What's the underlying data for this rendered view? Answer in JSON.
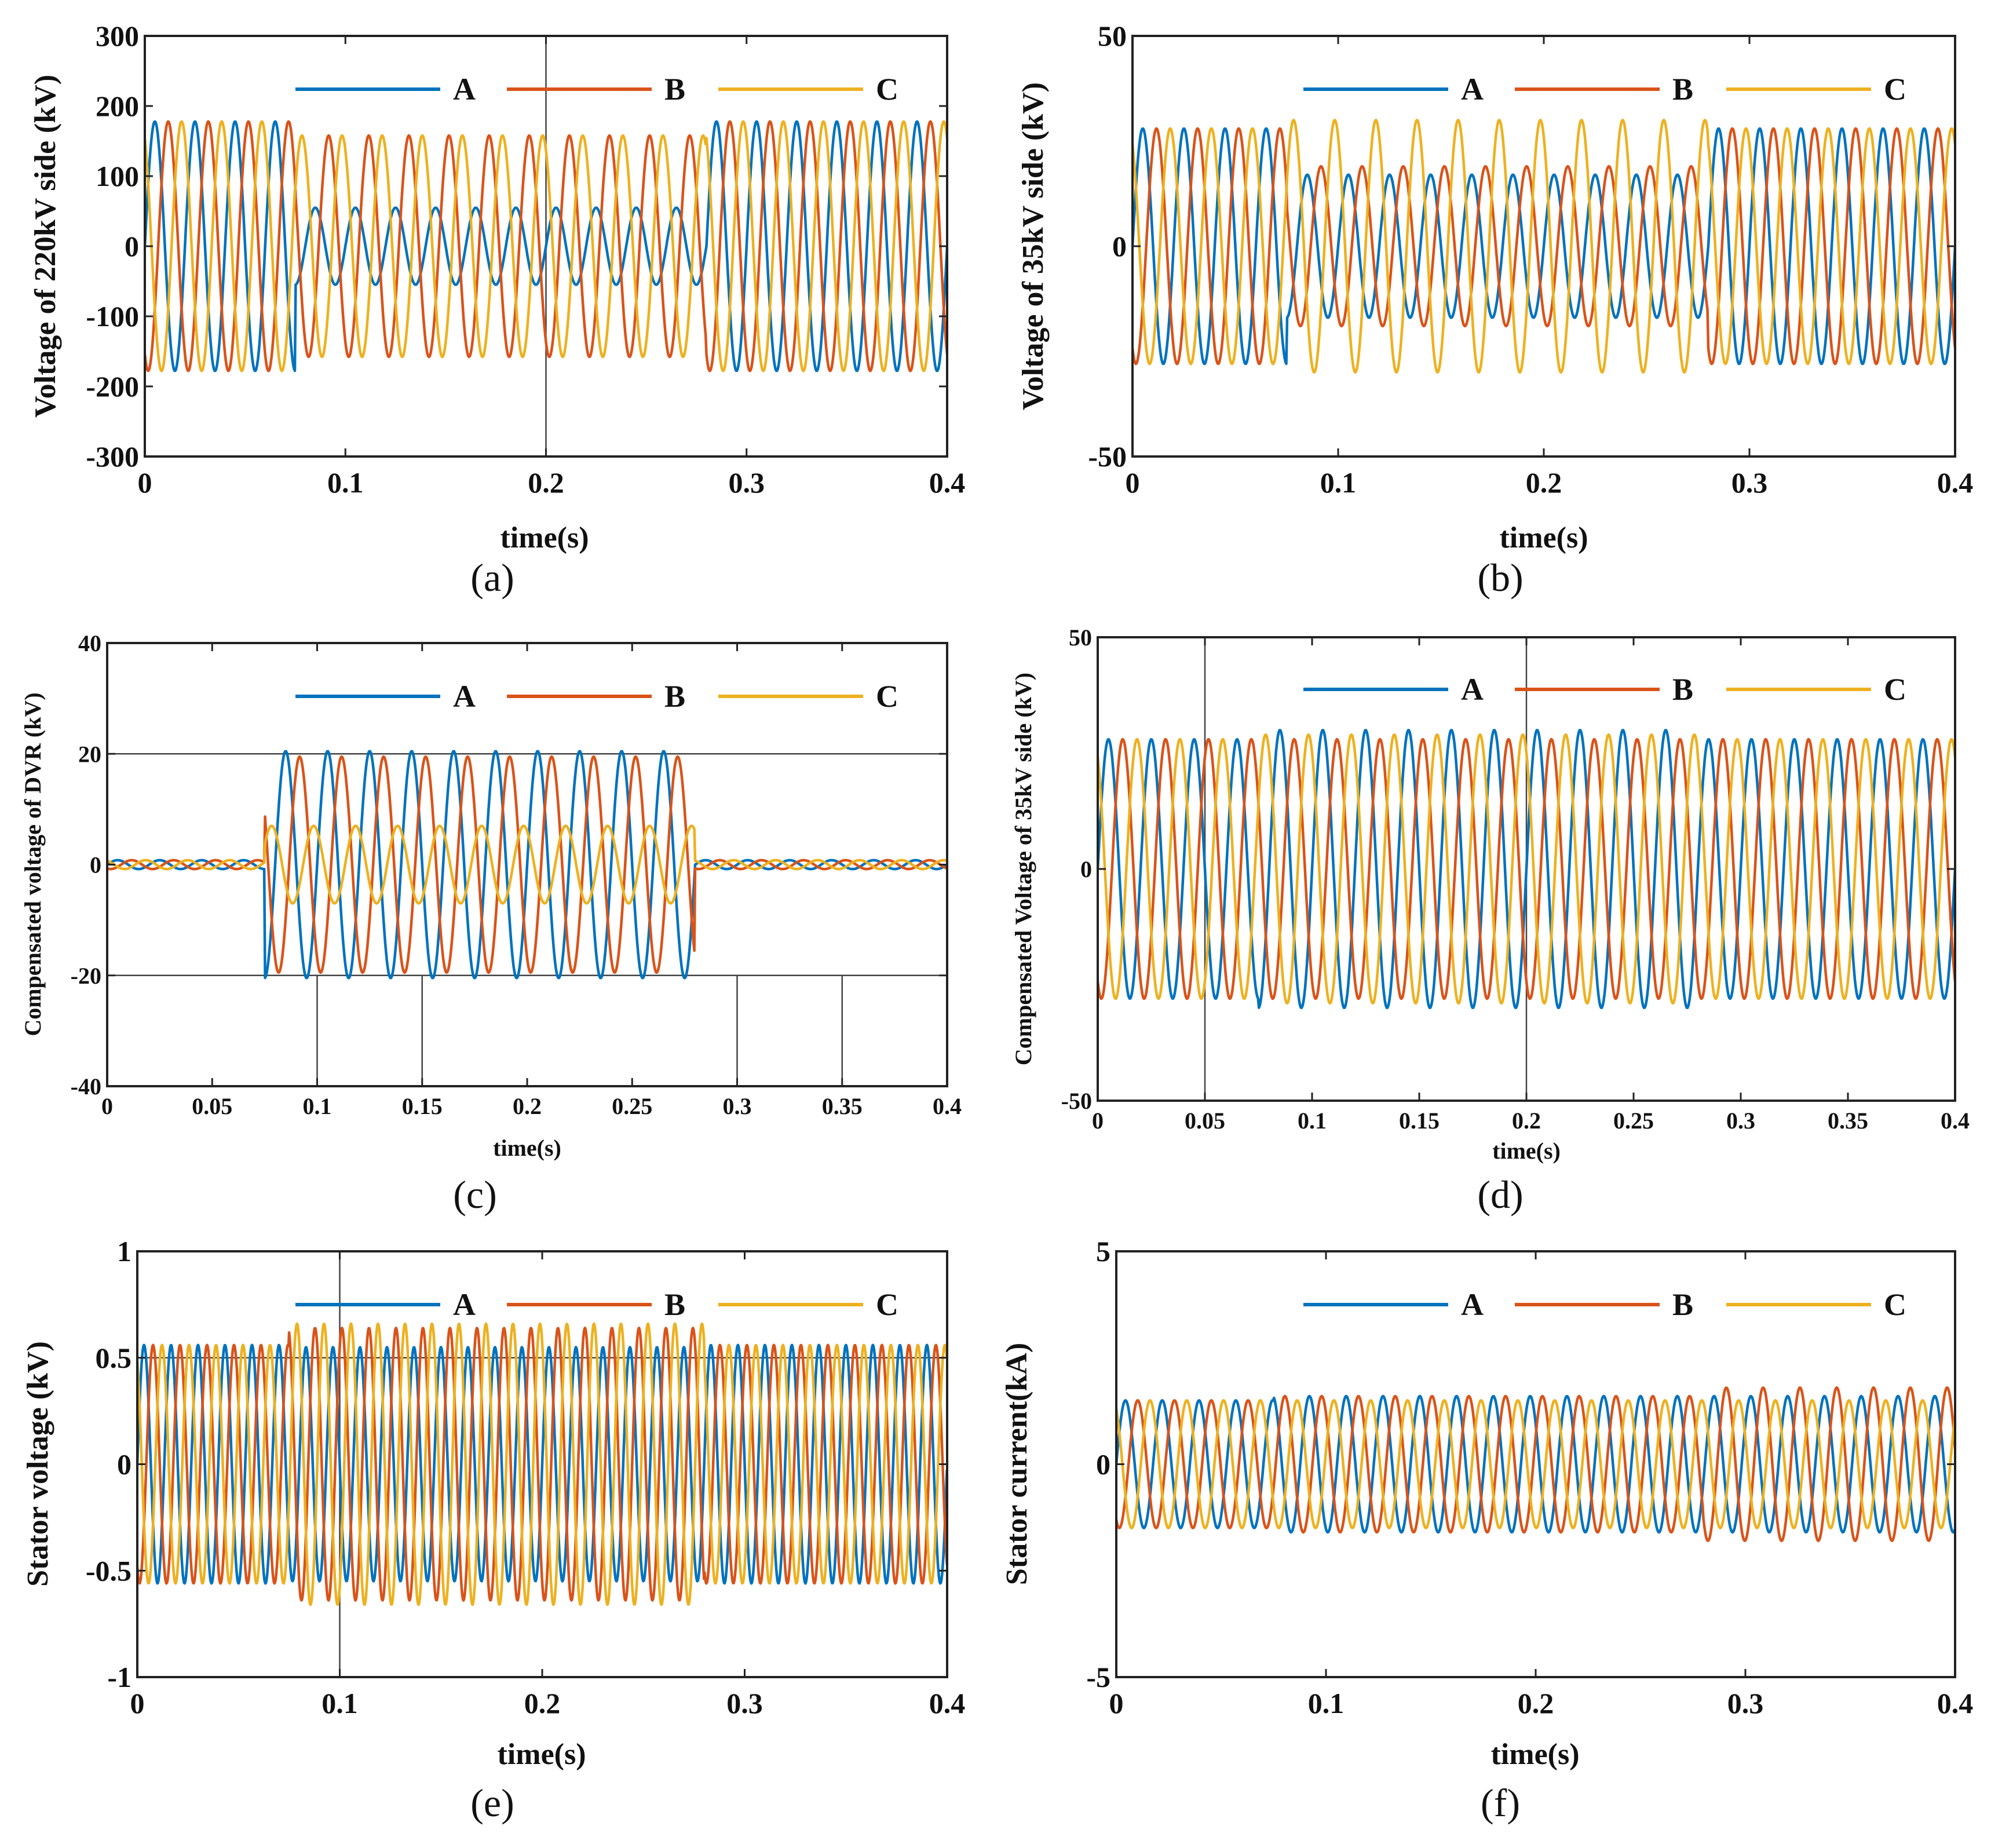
{
  "colors": {
    "A": "#0072BD",
    "B": "#D95319",
    "C": "#EDB120"
  },
  "chart_data": [
    {
      "id": "a",
      "type": "line",
      "caption": "(a)",
      "xlabel": "time(s)",
      "ylabel": "Voltage of 220kV side (kV)",
      "xlim": [
        0,
        0.4
      ],
      "ylim": [
        -300,
        300
      ],
      "xticks": [
        0,
        0.1,
        0.2,
        0.3,
        0.4
      ],
      "xtick_labels": [
        "0",
        "0.1",
        "0.2",
        "0.3",
        "0.4"
      ],
      "yticks": [
        -300,
        -200,
        -100,
        0,
        100,
        200,
        300
      ],
      "ytick_labels": [
        "-300",
        "-200",
        "-100",
        "0",
        "100",
        "200",
        "300"
      ],
      "legend": [
        "A",
        "B",
        "C"
      ],
      "legend_position": "top",
      "frequency_hz": 50,
      "sampling_step_s": 0.0004,
      "guide_lines_x": [
        0.2
      ],
      "guide_lines_y": [],
      "segments": [
        {
          "from": 0,
          "to": 0.075,
          "amplitude": {
            "A": 178,
            "B": 178,
            "C": 178
          }
        },
        {
          "from": 0.075,
          "to": 0.28,
          "amplitude": {
            "A": 55,
            "B": 158,
            "C": 158
          }
        },
        {
          "from": 0.28,
          "to": 0.4,
          "amplitude": {
            "A": 178,
            "B": 178,
            "C": 178
          }
        }
      ]
    },
    {
      "id": "b",
      "type": "line",
      "caption": "(b)",
      "xlabel": "time(s)",
      "ylabel": "Voltage of 35kV side (kV)",
      "xlim": [
        0,
        0.4
      ],
      "ylim": [
        -50,
        50
      ],
      "xticks": [
        0,
        0.1,
        0.2,
        0.3,
        0.4
      ],
      "xtick_labels": [
        "0",
        "0.1",
        "0.2",
        "0.3",
        "0.4"
      ],
      "yticks": [
        -50,
        0,
        50
      ],
      "ytick_labels": [
        "-50",
        "0",
        "50"
      ],
      "legend": [
        "A",
        "B",
        "C"
      ],
      "legend_position": "top",
      "frequency_hz": 50,
      "sampling_step_s": 0.0004,
      "guide_lines_x": [],
      "guide_lines_y": [],
      "segments": [
        {
          "from": 0,
          "to": 0.075,
          "amplitude": {
            "A": 28,
            "B": 28,
            "C": 28
          }
        },
        {
          "from": 0.075,
          "to": 0.28,
          "amplitude": {
            "A": 17,
            "B": 19,
            "C": 30
          }
        },
        {
          "from": 0.28,
          "to": 0.4,
          "amplitude": {
            "A": 28,
            "B": 28,
            "C": 28
          }
        }
      ]
    },
    {
      "id": "c",
      "type": "line",
      "caption": "(c)",
      "xlabel": "time(s)",
      "ylabel": "Compensated voltage of DVR (kV)",
      "xlim": [
        0,
        0.4
      ],
      "ylim": [
        -40,
        40
      ],
      "xticks": [
        0,
        0.05,
        0.1,
        0.15,
        0.2,
        0.25,
        0.3,
        0.35,
        0.4
      ],
      "xtick_labels": [
        "0",
        "0.05",
        "0.1",
        "0.15",
        "0.2",
        "0.25",
        "0.3",
        "0.35",
        "0.4"
      ],
      "yticks": [
        -40,
        -20,
        0,
        20,
        40
      ],
      "ytick_labels": [
        "-40",
        "-20",
        "0",
        "20",
        "40"
      ],
      "legend": [
        "A",
        "B",
        "C"
      ],
      "legend_position": "top",
      "frequency_hz": 50,
      "sampling_step_s": 0.0004,
      "guide_lines_x": [
        0.1,
        0.15,
        0.3,
        0.35
      ],
      "guide_lines_y": [
        20,
        -20
      ],
      "segments": [
        {
          "from": 0,
          "to": 0.075,
          "amplitude": {
            "A": 0.8,
            "B": 0.8,
            "C": 0.8
          }
        },
        {
          "from": 0.075,
          "to": 0.28,
          "amplitude": {
            "A": 20.5,
            "B": 19.5,
            "C": 7
          }
        },
        {
          "from": 0.28,
          "to": 0.4,
          "amplitude": {
            "A": 0.8,
            "B": 0.8,
            "C": 0.8
          }
        }
      ]
    },
    {
      "id": "d",
      "type": "line",
      "caption": "(d)",
      "xlabel": "time(s)",
      "ylabel": "Compensated Voltage of 35kV side (kV)",
      "xlim": [
        0,
        0.4
      ],
      "ylim": [
        -50,
        50
      ],
      "xticks": [
        0,
        0.05,
        0.1,
        0.15,
        0.2,
        0.25,
        0.3,
        0.35,
        0.4
      ],
      "xtick_labels": [
        "0",
        "0.05",
        "0.1",
        "0.15",
        "0.2",
        "0.25",
        "0.3",
        "0.35",
        "0.4"
      ],
      "yticks": [
        -50,
        0,
        50
      ],
      "ytick_labels": [
        "-50",
        "0",
        "50"
      ],
      "legend": [
        "A",
        "B",
        "C"
      ],
      "legend_position": "top",
      "frequency_hz": 50,
      "sampling_step_s": 0.0004,
      "guide_lines_x": [
        0.05,
        0.2
      ],
      "guide_lines_y": [],
      "segments": [
        {
          "from": 0,
          "to": 0.075,
          "amplitude": {
            "A": 28,
            "B": 28,
            "C": 28
          }
        },
        {
          "from": 0.075,
          "to": 0.28,
          "amplitude": {
            "A": 30,
            "B": 28,
            "C": 29
          }
        },
        {
          "from": 0.28,
          "to": 0.4,
          "amplitude": {
            "A": 28,
            "B": 28,
            "C": 28
          }
        }
      ]
    },
    {
      "id": "e",
      "type": "line",
      "caption": "(e)",
      "xlabel": "time(s)",
      "ylabel": "Stator voltage (kV)",
      "xlim": [
        0,
        0.4
      ],
      "ylim": [
        -1,
        1
      ],
      "xticks": [
        0,
        0.1,
        0.2,
        0.3,
        0.4
      ],
      "xtick_labels": [
        "0",
        "0.1",
        "0.2",
        "0.3",
        "0.4"
      ],
      "yticks": [
        -1,
        -0.5,
        0,
        0.5,
        1
      ],
      "ytick_labels": [
        "-1",
        "-0.5",
        "0",
        "0.5",
        "1"
      ],
      "legend": [
        "A",
        "B",
        "C"
      ],
      "legend_position": "top",
      "frequency_hz": 75,
      "sampling_step_s": 0.0003,
      "guide_lines_x": [
        0.1
      ],
      "guide_lines_y": [
        0.5
      ],
      "segments": [
        {
          "from": 0,
          "to": 0.075,
          "amplitude": {
            "A": 0.56,
            "B": 0.56,
            "C": 0.56
          }
        },
        {
          "from": 0.075,
          "to": 0.28,
          "amplitude": {
            "A": 0.55,
            "B": 0.64,
            "C": 0.66
          }
        },
        {
          "from": 0.28,
          "to": 0.4,
          "amplitude": {
            "A": 0.56,
            "B": 0.56,
            "C": 0.56
          }
        }
      ]
    },
    {
      "id": "f",
      "type": "line",
      "caption": "(f)",
      "xlabel": "time(s)",
      "ylabel": "Stator current(kA)",
      "xlim": [
        0,
        0.4
      ],
      "ylim": [
        -5,
        5
      ],
      "xticks": [
        0,
        0.1,
        0.2,
        0.3,
        0.4
      ],
      "xtick_labels": [
        "0",
        "0.1",
        "0.2",
        "0.3",
        "0.4"
      ],
      "yticks": [
        -5,
        0,
        5
      ],
      "ytick_labels": [
        "-5",
        "0",
        "5"
      ],
      "legend": [
        "A",
        "B",
        "C"
      ],
      "legend_position": "top",
      "frequency_hz": 57,
      "sampling_step_s": 0.0004,
      "guide_lines_x": [],
      "guide_lines_y": [],
      "segments": [
        {
          "from": 0,
          "to": 0.075,
          "amplitude": {
            "A": 1.5,
            "B": 1.5,
            "C": 1.5
          }
        },
        {
          "from": 0.075,
          "to": 0.28,
          "amplitude": {
            "A": 1.6,
            "B": 1.6,
            "C": 1.5
          }
        },
        {
          "from": 0.28,
          "to": 0.4,
          "amplitude": {
            "A": 1.6,
            "B": 1.8,
            "C": 1.5
          }
        }
      ]
    }
  ]
}
